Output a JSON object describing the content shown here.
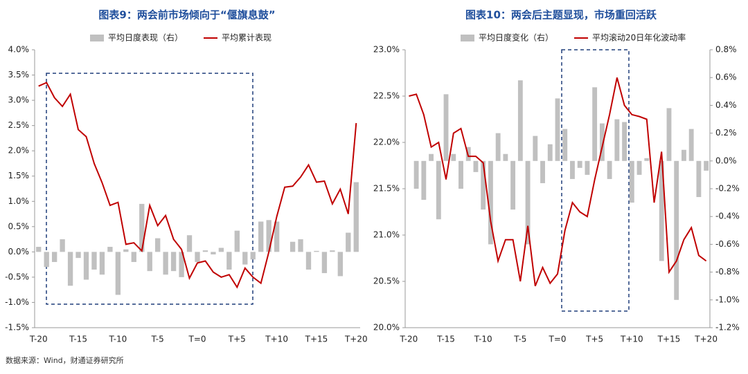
{
  "chart_data": [
    {
      "type": "combo",
      "title": "图表9：两会前市场倾向于“偃旗息鼓”",
      "categories": [
        "T-20",
        null,
        null,
        null,
        null,
        "T-15",
        null,
        null,
        null,
        null,
        "T-10",
        null,
        null,
        null,
        null,
        "T-5",
        null,
        null,
        null,
        null,
        "T=0",
        null,
        null,
        null,
        null,
        "T+5",
        null,
        null,
        null,
        null,
        "T+10",
        null,
        null,
        null,
        null,
        "T+15",
        null,
        null,
        null,
        null,
        "T+20"
      ],
      "series": [
        {
          "name": "平均日度表现（右）",
          "type": "bar",
          "color": "#c0c0c0",
          "values": [
            0.1,
            -0.3,
            -0.2,
            0.25,
            -0.67,
            -0.12,
            -0.55,
            -0.35,
            -0.45,
            0.1,
            -0.85,
            0.05,
            -0.2,
            0.95,
            -0.38,
            0.27,
            -0.45,
            -0.38,
            -0.5,
            0.33,
            -0.2,
            0.03,
            -0.05,
            0.08,
            -0.35,
            0.42,
            -0.25,
            -0.15,
            0.6,
            0.63,
            0.6,
            0,
            0.2,
            0.25,
            -0.35,
            0.02,
            -0.42,
            0.03,
            -0.48,
            0.38,
            1.38
          ]
        },
        {
          "name": "平均累计表现",
          "type": "line",
          "color": "#c00000",
          "values": [
            3.28,
            3.35,
            3.05,
            2.88,
            3.12,
            2.42,
            2.28,
            1.75,
            1.37,
            0.92,
            0.98,
            0.15,
            0.18,
            0.02,
            0.92,
            0.52,
            0.72,
            0.25,
            0.05,
            -0.52,
            -0.22,
            -0.18,
            -0.4,
            -0.5,
            -0.45,
            -0.7,
            -0.32,
            -0.5,
            -0.62,
            0.0,
            0.7,
            1.28,
            1.3,
            1.48,
            1.72,
            1.38,
            1.4,
            0.95,
            1.24,
            0.75,
            2.55
          ]
        }
      ],
      "ylim": [
        -1.5,
        4.0
      ],
      "yticks": [
        {
          "value": -1.5,
          "label": "-1.5%"
        },
        {
          "value": -1.0,
          "label": "-1.0%"
        },
        {
          "value": -0.5,
          "label": "-0.5%"
        },
        {
          "value": 0,
          "label": "0.0%"
        },
        {
          "value": 0.5,
          "label": "0.5%"
        },
        {
          "value": 1.0,
          "label": "1.0%"
        },
        {
          "value": 1.5,
          "label": "1.5%"
        },
        {
          "value": 2.0,
          "label": "2.0%"
        },
        {
          "value": 2.5,
          "label": "2.5%"
        },
        {
          "value": 3.0,
          "label": "3.0%"
        },
        {
          "value": 3.5,
          "label": "3.5%"
        },
        {
          "value": 4.0,
          "label": "4.0%"
        }
      ]
    },
    {
      "type": "combo",
      "title": "图表10：两会后主题显现，市场重回活跃",
      "categories": [
        "T-20",
        null,
        null,
        null,
        null,
        "T-15",
        null,
        null,
        null,
        null,
        "T-10",
        null,
        null,
        null,
        null,
        "T-5",
        null,
        null,
        null,
        null,
        "T=0",
        null,
        null,
        null,
        null,
        "T+5",
        null,
        null,
        null,
        null,
        "T+10",
        null,
        null,
        null,
        null,
        "T+15",
        null,
        null,
        null,
        null,
        "T+20"
      ],
      "series": [
        {
          "name": "平均日度变化（右）",
          "type": "bar",
          "axis": "y2",
          "color": "#c0c0c0",
          "values": [
            0.0,
            -0.2,
            -0.28,
            0.05,
            -0.42,
            0.48,
            0.05,
            -0.2,
            0.1,
            -0.08,
            -0.35,
            -0.6,
            0.2,
            0.05,
            -0.35,
            0.58,
            -0.6,
            0.18,
            -0.16,
            0.12,
            0.45,
            0.23,
            -0.13,
            -0.05,
            -0.1,
            0.53,
            0.27,
            -0.13,
            0.3,
            0.28,
            -0.3,
            -0.1,
            0.02,
            0.0,
            -0.72,
            0.38,
            -1.0,
            0.08,
            0.23,
            -0.26,
            -0.07
          ]
        },
        {
          "name": "平均滚动20日年化波动率",
          "type": "line",
          "color": "#c00000",
          "values": [
            22.5,
            22.52,
            22.3,
            21.95,
            22.0,
            21.6,
            22.1,
            22.15,
            21.85,
            21.85,
            21.78,
            21.15,
            20.72,
            20.95,
            20.95,
            20.5,
            21.1,
            20.45,
            20.65,
            20.48,
            20.58,
            21.05,
            21.35,
            21.25,
            21.2,
            21.6,
            21.95,
            22.3,
            22.7,
            22.4,
            22.3,
            22.28,
            22.25,
            21.35,
            21.9,
            20.6,
            20.72,
            20.95,
            21.08,
            20.78,
            20.72
          ]
        }
      ],
      "ylim": [
        20.0,
        23.0
      ],
      "yticks": [
        {
          "value": 20.0,
          "label": "20.0%"
        },
        {
          "value": 20.5,
          "label": "20.5%"
        },
        {
          "value": 21.0,
          "label": "21.0%"
        },
        {
          "value": 21.5,
          "label": "21.5%"
        },
        {
          "value": 22.0,
          "label": "22.0%"
        },
        {
          "value": 22.5,
          "label": "22.5%"
        },
        {
          "value": 23.0,
          "label": "23.0%"
        }
      ],
      "y2lim": [
        -1.2,
        0.8
      ],
      "y2ticks": [
        {
          "value": -1.2,
          "label": "-1.2%"
        },
        {
          "value": -1.0,
          "label": "-1.0%"
        },
        {
          "value": -0.8,
          "label": "-0.8%"
        },
        {
          "value": -0.6,
          "label": "-0.6%"
        },
        {
          "value": -0.4,
          "label": "-0.4%"
        },
        {
          "value": -0.2,
          "label": "-0.2%"
        },
        {
          "value": 0,
          "label": "0.0%"
        },
        {
          "value": 0.2,
          "label": "0.2%"
        },
        {
          "value": 0.4,
          "label": "0.4%"
        },
        {
          "value": 0.6,
          "label": "0.6%"
        },
        {
          "value": 0.8,
          "label": "0.8%"
        }
      ]
    }
  ],
  "source": "数据来源：Wind，财通证券研究所"
}
